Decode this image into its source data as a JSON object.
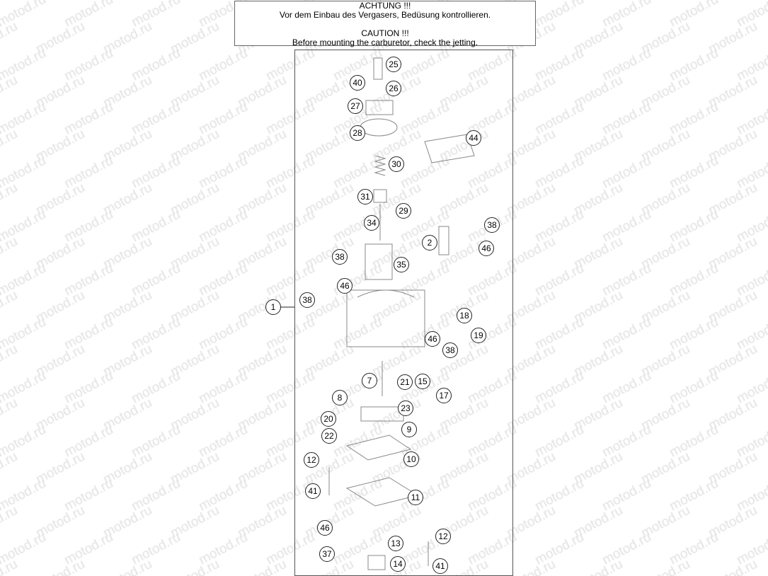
{
  "watermark": "motod.ru",
  "notice": {
    "de_title": "ACHTUNG !!!",
    "de_text": "Vor dem Einbau des Vergasers, Bedüsung kontrollieren.",
    "en_title": "CAUTION !!!",
    "en_text": "Before mounting the carburetor, check the jetting."
  },
  "callouts": [
    "25",
    "40",
    "26",
    "27",
    "28",
    "44",
    "30",
    "31",
    "29",
    "34",
    "38",
    "2",
    "46",
    "38",
    "35",
    "46",
    "38",
    "1",
    "18",
    "19",
    "46",
    "38",
    "7",
    "21",
    "15",
    "17",
    "8",
    "23",
    "20",
    "9",
    "22",
    "10",
    "12",
    "41",
    "11",
    "46",
    "12",
    "13",
    "37",
    "14",
    "41"
  ]
}
